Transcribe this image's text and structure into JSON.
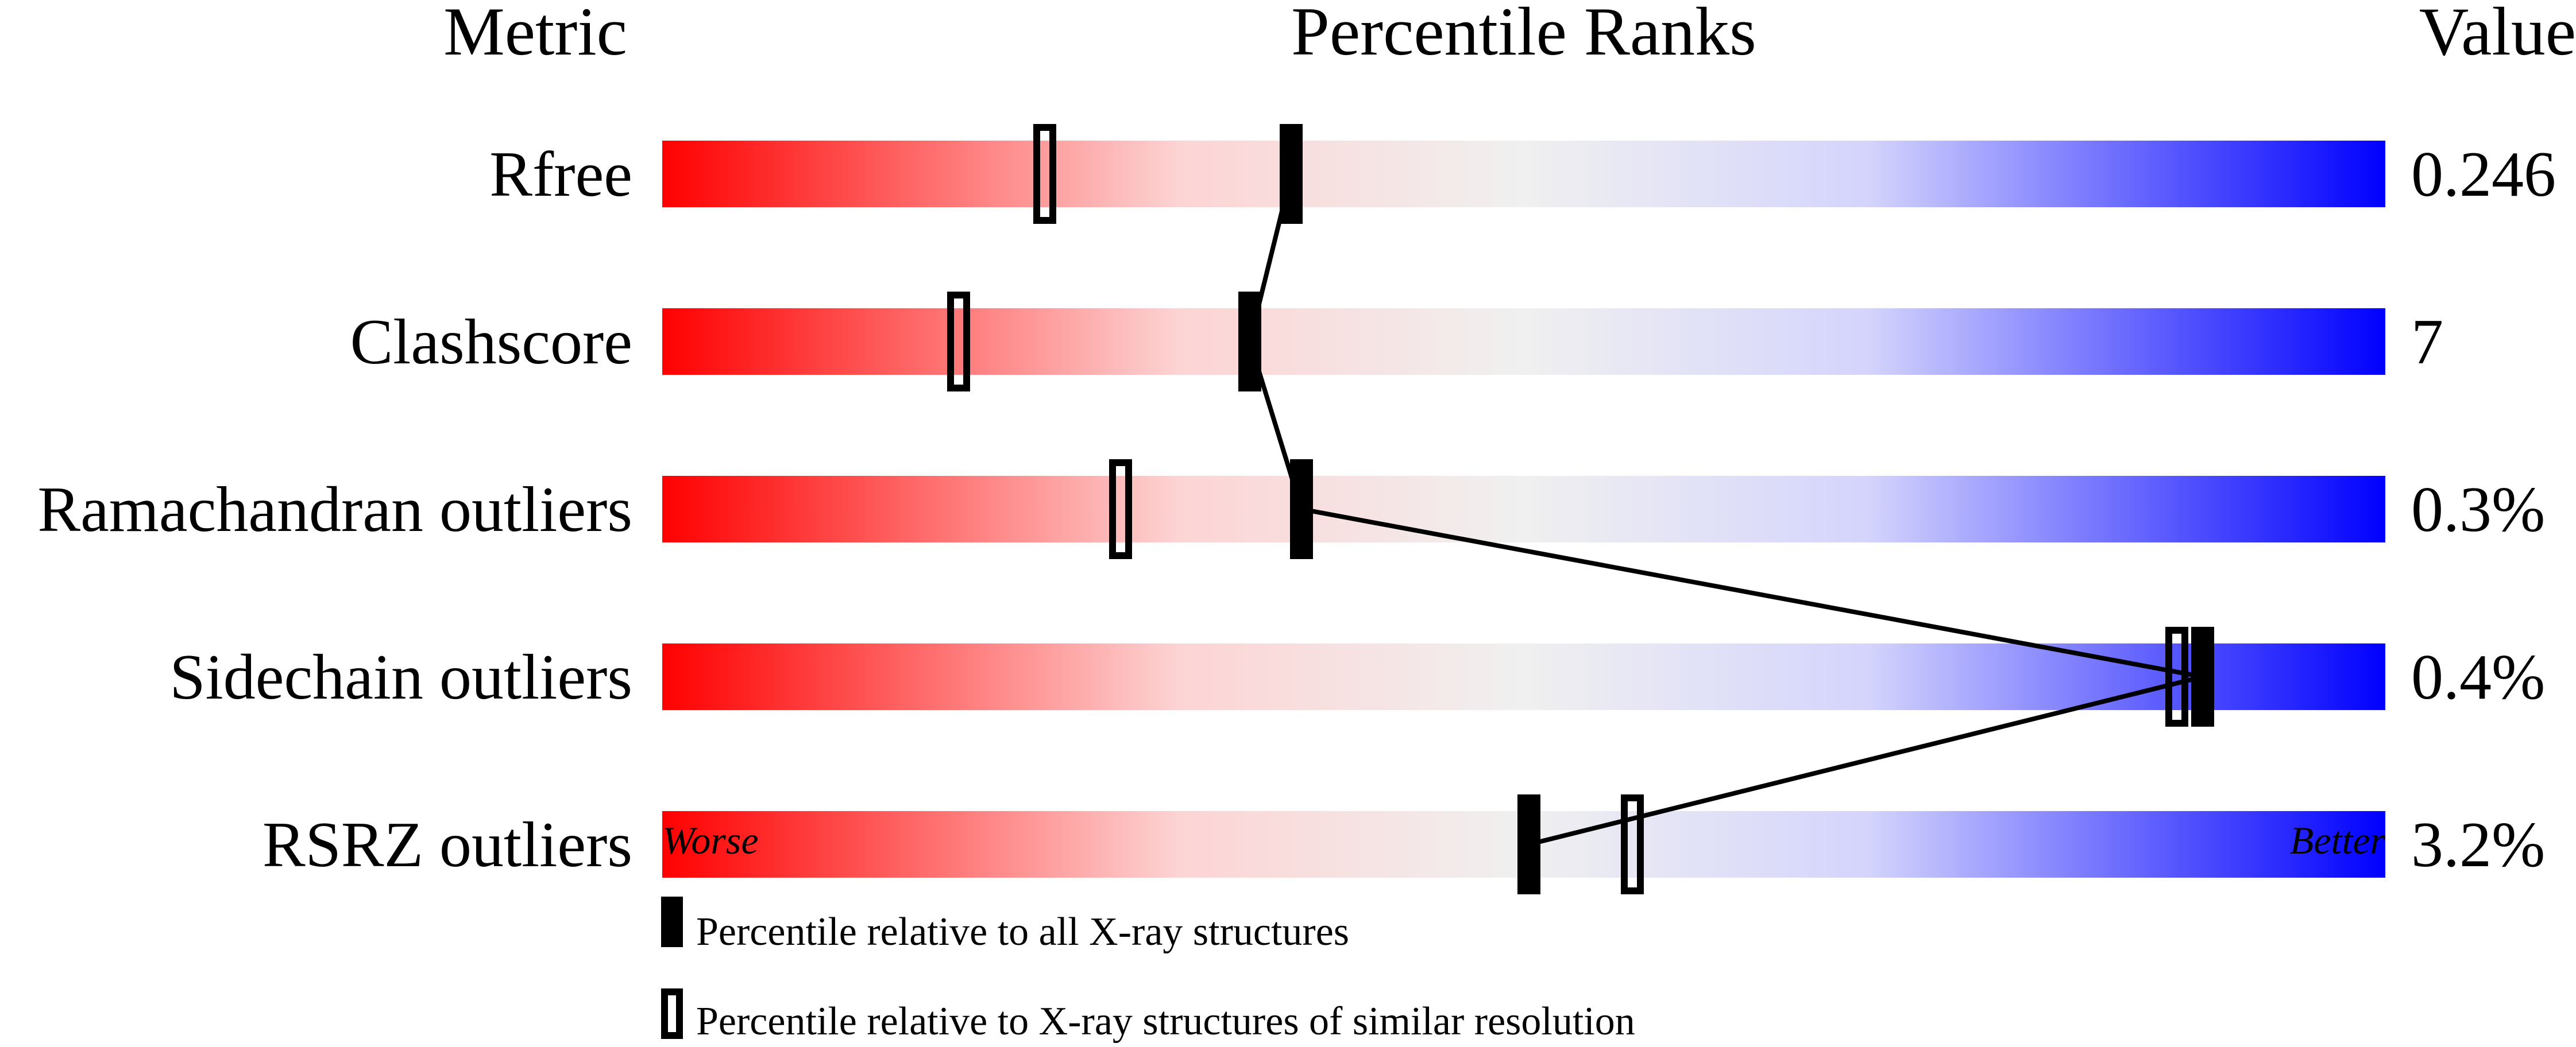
{
  "chart_data": {
    "type": "percentile-bar",
    "headers": {
      "metric": "Metric",
      "ranks": "Percentile Ranks",
      "value": "Value"
    },
    "xlim": [
      0,
      100
    ],
    "axis_labels": {
      "left": "Worse",
      "right": "Better"
    },
    "gradient_colors": {
      "worse": "#ff0000",
      "middle": "#f0f0f0",
      "better": "#0000ff"
    },
    "rows": [
      {
        "metric": "Rfree",
        "value": "0.246",
        "percentile_all": 36.5,
        "percentile_similar": 22.2
      },
      {
        "metric": "Clashscore",
        "value": "7",
        "percentile_all": 34.1,
        "percentile_similar": 17.2
      },
      {
        "metric": "Ramachandran outliers",
        "value": "0.3%",
        "percentile_all": 37.1,
        "percentile_similar": 26.6
      },
      {
        "metric": "Sidechain outliers",
        "value": "0.4%",
        "percentile_all": 89.4,
        "percentile_similar": 87.9
      },
      {
        "metric": "RSRZ outliers",
        "value": "3.2%",
        "percentile_all": 50.3,
        "percentile_similar": 56.3
      }
    ],
    "legend": [
      {
        "marker": "filled",
        "label": "Percentile relative to all X-ray structures"
      },
      {
        "marker": "open",
        "label": "Percentile relative to X-ray structures of similar resolution"
      }
    ]
  }
}
